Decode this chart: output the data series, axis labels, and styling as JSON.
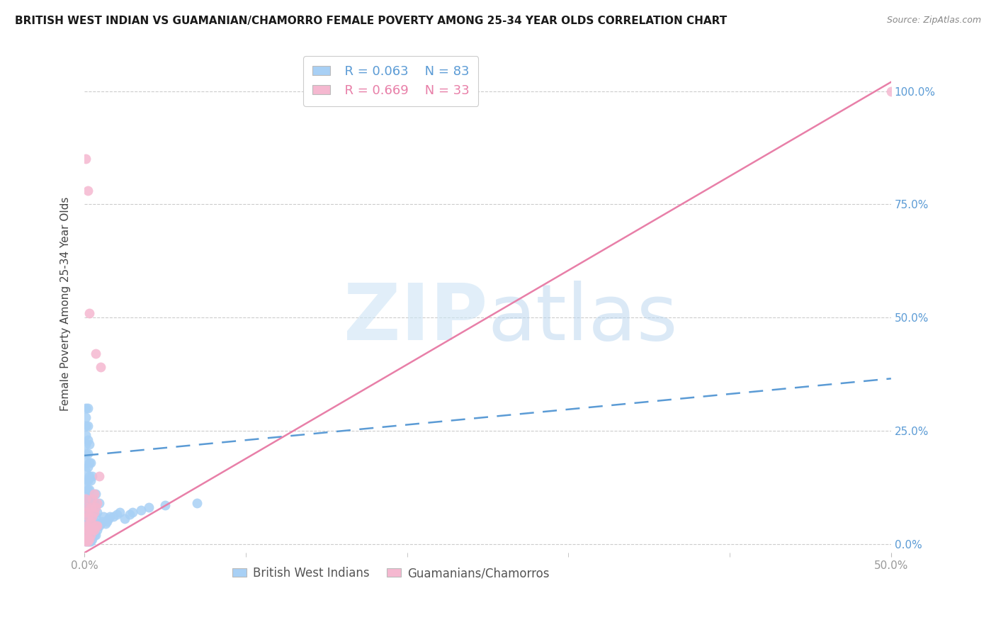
{
  "title": "BRITISH WEST INDIAN VS GUAMANIAN/CHAMORRO FEMALE POVERTY AMONG 25-34 YEAR OLDS CORRELATION CHART",
  "source": "Source: ZipAtlas.com",
  "ylabel": "Female Poverty Among 25-34 Year Olds",
  "xlim": [
    0.0,
    0.5
  ],
  "ylim": [
    -0.02,
    1.08
  ],
  "xtick_major": [
    0.0,
    0.5
  ],
  "xtick_minor": [
    0.1,
    0.2,
    0.3,
    0.4
  ],
  "xtick_major_labels": [
    "0.0%",
    "50.0%"
  ],
  "ytick_vals": [
    0.0,
    0.25,
    0.5,
    0.75,
    1.0
  ],
  "ytick_labels": [
    "0.0%",
    "25.0%",
    "50.0%",
    "75.0%",
    "100.0%"
  ],
  "legend_r1": "R = 0.063",
  "legend_n1": "N = 83",
  "legend_r2": "R = 0.669",
  "legend_n2": "N = 33",
  "blue_color": "#a8d0f5",
  "pink_color": "#f5b8d0",
  "blue_line_color": "#5b9bd5",
  "pink_line_color": "#e87fa8",
  "background_color": "#ffffff",
  "blue_scatter": [
    [
      0.001,
      0.005
    ],
    [
      0.001,
      0.01
    ],
    [
      0.001,
      0.02
    ],
    [
      0.001,
      0.03
    ],
    [
      0.001,
      0.04
    ],
    [
      0.001,
      0.05
    ],
    [
      0.001,
      0.06
    ],
    [
      0.001,
      0.07
    ],
    [
      0.001,
      0.08
    ],
    [
      0.001,
      0.1
    ],
    [
      0.001,
      0.12
    ],
    [
      0.001,
      0.14
    ],
    [
      0.001,
      0.16
    ],
    [
      0.001,
      0.18
    ],
    [
      0.001,
      0.2
    ],
    [
      0.001,
      0.22
    ],
    [
      0.001,
      0.24
    ],
    [
      0.001,
      0.26
    ],
    [
      0.001,
      0.28
    ],
    [
      0.001,
      0.3
    ],
    [
      0.002,
      0.005
    ],
    [
      0.002,
      0.01
    ],
    [
      0.002,
      0.02
    ],
    [
      0.002,
      0.04
    ],
    [
      0.002,
      0.06
    ],
    [
      0.002,
      0.08
    ],
    [
      0.002,
      0.1
    ],
    [
      0.002,
      0.12
    ],
    [
      0.002,
      0.14
    ],
    [
      0.002,
      0.17
    ],
    [
      0.002,
      0.2
    ],
    [
      0.002,
      0.23
    ],
    [
      0.002,
      0.26
    ],
    [
      0.002,
      0.3
    ],
    [
      0.003,
      0.005
    ],
    [
      0.003,
      0.01
    ],
    [
      0.003,
      0.03
    ],
    [
      0.003,
      0.05
    ],
    [
      0.003,
      0.07
    ],
    [
      0.003,
      0.09
    ],
    [
      0.003,
      0.12
    ],
    [
      0.003,
      0.15
    ],
    [
      0.003,
      0.18
    ],
    [
      0.003,
      0.22
    ],
    [
      0.004,
      0.005
    ],
    [
      0.004,
      0.02
    ],
    [
      0.004,
      0.04
    ],
    [
      0.004,
      0.07
    ],
    [
      0.004,
      0.1
    ],
    [
      0.004,
      0.14
    ],
    [
      0.004,
      0.18
    ],
    [
      0.005,
      0.01
    ],
    [
      0.005,
      0.03
    ],
    [
      0.005,
      0.06
    ],
    [
      0.005,
      0.1
    ],
    [
      0.005,
      0.15
    ],
    [
      0.006,
      0.02
    ],
    [
      0.006,
      0.05
    ],
    [
      0.006,
      0.09
    ],
    [
      0.007,
      0.02
    ],
    [
      0.007,
      0.06
    ],
    [
      0.007,
      0.11
    ],
    [
      0.008,
      0.03
    ],
    [
      0.008,
      0.07
    ],
    [
      0.009,
      0.04
    ],
    [
      0.009,
      0.09
    ],
    [
      0.01,
      0.045
    ],
    [
      0.011,
      0.05
    ],
    [
      0.012,
      0.06
    ],
    [
      0.013,
      0.045
    ],
    [
      0.014,
      0.05
    ],
    [
      0.015,
      0.055
    ],
    [
      0.016,
      0.06
    ],
    [
      0.018,
      0.06
    ],
    [
      0.02,
      0.065
    ],
    [
      0.022,
      0.07
    ],
    [
      0.025,
      0.055
    ],
    [
      0.028,
      0.065
    ],
    [
      0.03,
      0.07
    ],
    [
      0.035,
      0.075
    ],
    [
      0.04,
      0.08
    ],
    [
      0.05,
      0.085
    ],
    [
      0.07,
      0.09
    ]
  ],
  "pink_scatter": [
    [
      0.001,
      0.005
    ],
    [
      0.001,
      0.01
    ],
    [
      0.001,
      0.02
    ],
    [
      0.001,
      0.04
    ],
    [
      0.001,
      0.07
    ],
    [
      0.001,
      0.1
    ],
    [
      0.001,
      0.85
    ],
    [
      0.002,
      0.005
    ],
    [
      0.002,
      0.01
    ],
    [
      0.002,
      0.03
    ],
    [
      0.002,
      0.06
    ],
    [
      0.002,
      0.08
    ],
    [
      0.002,
      0.78
    ],
    [
      0.003,
      0.01
    ],
    [
      0.003,
      0.04
    ],
    [
      0.003,
      0.51
    ],
    [
      0.004,
      0.02
    ],
    [
      0.004,
      0.05
    ],
    [
      0.004,
      0.08
    ],
    [
      0.005,
      0.03
    ],
    [
      0.005,
      0.06
    ],
    [
      0.005,
      0.1
    ],
    [
      0.006,
      0.03
    ],
    [
      0.006,
      0.07
    ],
    [
      0.006,
      0.11
    ],
    [
      0.007,
      0.04
    ],
    [
      0.007,
      0.08
    ],
    [
      0.007,
      0.42
    ],
    [
      0.008,
      0.04
    ],
    [
      0.008,
      0.09
    ],
    [
      0.009,
      0.15
    ],
    [
      0.01,
      0.39
    ],
    [
      0.5,
      1.0
    ]
  ],
  "blue_line_x": [
    0.0,
    0.5
  ],
  "blue_line_y": [
    0.195,
    0.365
  ],
  "pink_line_x": [
    0.0,
    0.5
  ],
  "pink_line_y": [
    -0.02,
    1.02
  ]
}
